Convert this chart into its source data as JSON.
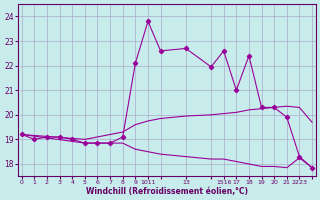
{
  "xlabel": "Windchill (Refroidissement éolien,°C)",
  "bg_color": "#c8ecec",
  "line_color": "#990099",
  "grid_color": "#aaaacc",
  "xlim": [
    -0.3,
    23.3
  ],
  "ylim": [
    17.5,
    24.5
  ],
  "yticks": [
    18,
    19,
    20,
    21,
    22,
    23,
    24
  ],
  "xtick_positions": [
    0,
    1,
    2,
    3,
    4,
    5,
    6,
    7,
    8,
    9,
    10,
    11,
    13,
    15,
    16,
    17,
    18,
    19,
    20,
    21,
    22,
    23
  ],
  "xtick_labels": [
    "0",
    "1",
    "2",
    "3",
    "4",
    "5",
    "6",
    "7",
    "8",
    "9",
    "1011",
    "",
    "13",
    "",
    "1516",
    "17",
    "18",
    "19",
    "20",
    "21",
    "2223",
    ""
  ],
  "series1_x": [
    0,
    1,
    2,
    3,
    4,
    5,
    6,
    7,
    8,
    9,
    10,
    11,
    13,
    15,
    16,
    17,
    18,
    19,
    20,
    21,
    22,
    23
  ],
  "series1_y": [
    19.2,
    19.0,
    19.1,
    19.1,
    19.0,
    18.85,
    18.85,
    18.85,
    19.1,
    22.1,
    23.8,
    22.6,
    22.7,
    21.95,
    22.6,
    21.0,
    22.4,
    20.3,
    20.3,
    19.9,
    18.3,
    17.85
  ],
  "series2_x": [
    0,
    5,
    8,
    9,
    10,
    11,
    13,
    15,
    16,
    17,
    18,
    19,
    20,
    21,
    22,
    23
  ],
  "series2_y": [
    19.2,
    19.0,
    19.3,
    19.6,
    19.75,
    19.85,
    19.95,
    20.0,
    20.05,
    20.1,
    20.2,
    20.25,
    20.3,
    20.35,
    20.3,
    19.7
  ],
  "series3_x": [
    0,
    5,
    8,
    9,
    10,
    11,
    13,
    15,
    16,
    17,
    18,
    19,
    20,
    21,
    22,
    23
  ],
  "series3_y": [
    19.2,
    18.85,
    18.85,
    18.6,
    18.5,
    18.4,
    18.3,
    18.2,
    18.2,
    18.1,
    18.0,
    17.9,
    17.9,
    17.85,
    18.25,
    17.85
  ]
}
